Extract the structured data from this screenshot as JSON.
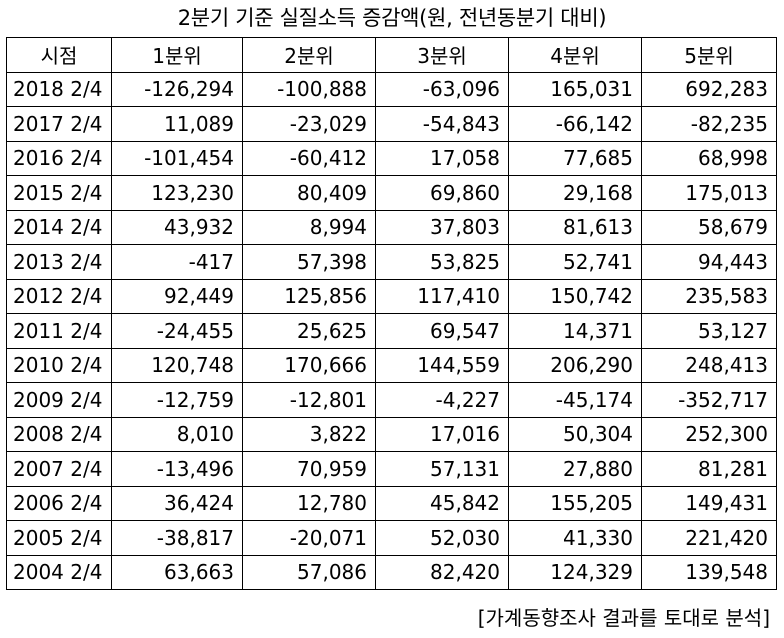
{
  "title": "2분기 기준 실질소득 증감액(원, 전년동분기 대비)",
  "table": {
    "headers": [
      "시점",
      "1분위",
      "2분위",
      "3분위",
      "4분위",
      "5분위"
    ],
    "rows": [
      [
        "2018 2/4",
        "-126,294",
        "-100,888",
        "-63,096",
        "165,031",
        "692,283"
      ],
      [
        "2017 2/4",
        "11,089",
        "-23,029",
        "-54,843",
        "-66,142",
        "-82,235"
      ],
      [
        "2016 2/4",
        "-101,454",
        "-60,412",
        "17,058",
        "77,685",
        "68,998"
      ],
      [
        "2015 2/4",
        "123,230",
        "80,409",
        "69,860",
        "29,168",
        "175,013"
      ],
      [
        "2014 2/4",
        "43,932",
        "8,994",
        "37,803",
        "81,613",
        "58,679"
      ],
      [
        "2013 2/4",
        "-417",
        "57,398",
        "53,825",
        "52,741",
        "94,443"
      ],
      [
        "2012 2/4",
        "92,449",
        "125,856",
        "117,410",
        "150,742",
        "235,583"
      ],
      [
        "2011 2/4",
        "-24,455",
        "25,625",
        "69,547",
        "14,371",
        "53,127"
      ],
      [
        "2010 2/4",
        "120,748",
        "170,666",
        "144,559",
        "206,290",
        "248,413"
      ],
      [
        "2009 2/4",
        "-12,759",
        "-12,801",
        "-4,227",
        "-45,174",
        "-352,717"
      ],
      [
        "2008 2/4",
        "8,010",
        "3,822",
        "17,016",
        "50,304",
        "252,300"
      ],
      [
        "2007 2/4",
        "-13,496",
        "70,959",
        "57,131",
        "27,880",
        "81,281"
      ],
      [
        "2006 2/4",
        "36,424",
        "12,780",
        "45,842",
        "155,205",
        "149,431"
      ],
      [
        "2005 2/4",
        "-38,817",
        "-20,071",
        "52,030",
        "41,330",
        "221,420"
      ],
      [
        "2004 2/4",
        "63,663",
        "57,086",
        "82,420",
        "124,329",
        "139,548"
      ]
    ]
  },
  "source": "[가계동향조사 결과를 토대로 분석]"
}
